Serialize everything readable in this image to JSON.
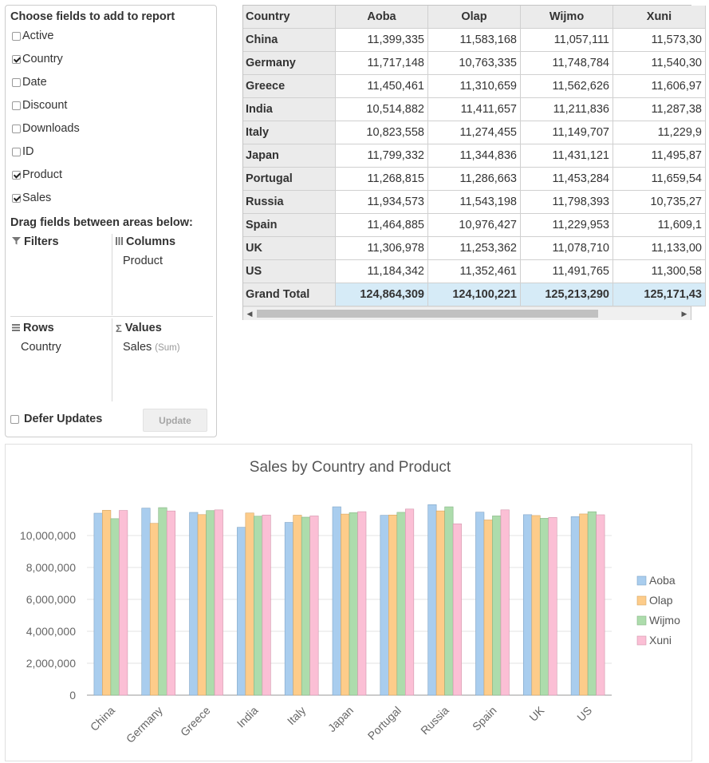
{
  "panel": {
    "title": "Choose fields to add to report",
    "fields": [
      {
        "label": "Active",
        "checked": false
      },
      {
        "label": "Country",
        "checked": true
      },
      {
        "label": "Date",
        "checked": false
      },
      {
        "label": "Discount",
        "checked": false
      },
      {
        "label": "Downloads",
        "checked": false
      },
      {
        "label": "ID",
        "checked": false
      },
      {
        "label": "Product",
        "checked": true
      },
      {
        "label": "Sales",
        "checked": true
      }
    ],
    "drag_title": "Drag fields between areas below:",
    "areas": {
      "filters": {
        "label": "Filters",
        "icon": "filter-icon"
      },
      "columns": {
        "label": "Columns",
        "icon": "columns-icon",
        "items": [
          "Product"
        ]
      },
      "rows": {
        "label": "Rows",
        "icon": "rows-icon",
        "items": [
          "Country"
        ]
      },
      "values": {
        "label": "Values",
        "icon": "sigma-icon",
        "items": [
          "Sales"
        ],
        "agg": "(Sum)"
      }
    },
    "defer_label": "Defer Updates",
    "defer_checked": false,
    "update_label": "Update"
  },
  "grid": {
    "corner_header": "Country",
    "columns": [
      "Aoba",
      "Olap",
      "Wijmo",
      "Xuni"
    ],
    "rows": [
      {
        "country": "China",
        "values": [
          "11,399,335",
          "11,583,168",
          "11,057,111",
          "11,573,30"
        ]
      },
      {
        "country": "Germany",
        "values": [
          "11,717,148",
          "10,763,335",
          "11,748,784",
          "11,540,30"
        ]
      },
      {
        "country": "Greece",
        "values": [
          "11,450,461",
          "11,310,659",
          "11,562,626",
          "11,606,97"
        ]
      },
      {
        "country": "India",
        "values": [
          "10,514,882",
          "11,411,657",
          "11,211,836",
          "11,287,38"
        ]
      },
      {
        "country": "Italy",
        "values": [
          "10,823,558",
          "11,274,455",
          "11,149,707",
          "11,229,9"
        ]
      },
      {
        "country": "Japan",
        "values": [
          "11,799,332",
          "11,344,836",
          "11,431,121",
          "11,495,87"
        ]
      },
      {
        "country": "Portugal",
        "values": [
          "11,268,815",
          "11,286,663",
          "11,453,284",
          "11,659,54"
        ]
      },
      {
        "country": "Russia",
        "values": [
          "11,934,573",
          "11,543,198",
          "11,798,393",
          "10,735,27"
        ]
      },
      {
        "country": "Spain",
        "values": [
          "11,464,885",
          "10,976,427",
          "11,229,953",
          "11,609,1"
        ]
      },
      {
        "country": "UK",
        "values": [
          "11,306,978",
          "11,253,362",
          "11,078,710",
          "11,133,00"
        ]
      },
      {
        "country": "US",
        "values": [
          "11,184,342",
          "11,352,461",
          "11,491,765",
          "11,300,58"
        ]
      }
    ],
    "total_label": "Grand Total",
    "totals": [
      "124,864,309",
      "124,100,221",
      "125,213,290",
      "125,171,43"
    ]
  },
  "colors": {
    "Aoba": "#a9cdee",
    "Olap": "#fdcc8a",
    "Wijmo": "#addcac",
    "Xuni": "#fbbfd5",
    "grid_header": "#ebebeb",
    "grand_total": "#d6ebf7"
  },
  "chart_data": {
    "type": "bar",
    "title": "Sales by Country and Product",
    "xlabel": "",
    "ylabel": "",
    "categories": [
      "China",
      "Germany",
      "Greece",
      "India",
      "Italy",
      "Japan",
      "Portugal",
      "Russia",
      "Spain",
      "UK",
      "US"
    ],
    "series": [
      {
        "name": "Aoba",
        "values": [
          11399335,
          11717148,
          11450461,
          10514882,
          10823558,
          11799332,
          11268815,
          11934573,
          11464885,
          11306978,
          11184342
        ]
      },
      {
        "name": "Olap",
        "values": [
          11583168,
          10763335,
          11310659,
          11411657,
          11274455,
          11344836,
          11286663,
          11543198,
          10976427,
          11253362,
          11352461
        ]
      },
      {
        "name": "Wijmo",
        "values": [
          11057111,
          11748784,
          11562626,
          11211836,
          11149707,
          11431121,
          11453284,
          11798393,
          11229953,
          11078710,
          11491765
        ]
      },
      {
        "name": "Xuni",
        "values": [
          11573300,
          11540300,
          11606970,
          11287380,
          11229900,
          11495870,
          11659540,
          10735270,
          11609100,
          11133000,
          11300580
        ]
      }
    ],
    "yticks": [
      "0",
      "2,000,000",
      "4,000,000",
      "6,000,000",
      "8,000,000",
      "10,000,000"
    ],
    "ylim": [
      0,
      12000000
    ],
    "grid": true,
    "legend": "right"
  }
}
